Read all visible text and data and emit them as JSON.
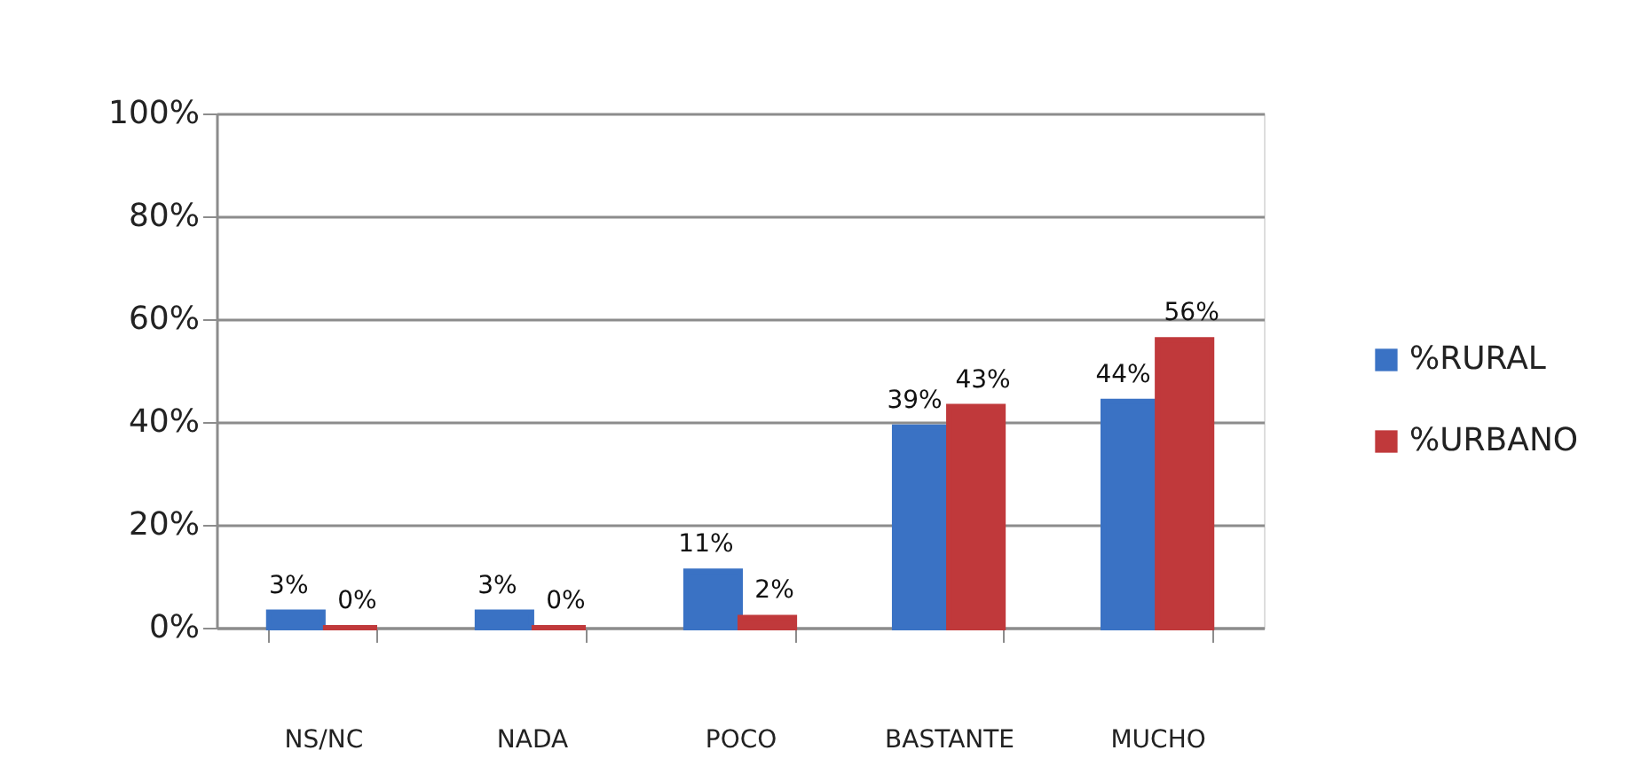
{
  "chart_data": {
    "type": "bar",
    "categories": [
      "NS/NC",
      "NADA",
      "POCO",
      "BASTANTE",
      "MUCHO"
    ],
    "series": [
      {
        "name": "%RURAL",
        "color": "#3a72c4",
        "values": [
          3,
          3,
          11,
          39,
          44
        ],
        "value_labels": [
          "3%",
          "3%",
          "11%",
          "39%",
          "44%"
        ]
      },
      {
        "name": "%URBANO",
        "color": "#c0393b",
        "values": [
          0,
          0,
          2,
          43,
          56
        ],
        "value_labels": [
          "0%",
          "0%",
          "2%",
          "43%",
          "56%"
        ]
      }
    ],
    "ylim": [
      0,
      100
    ],
    "yticks": [
      {
        "value": 0,
        "label": "0%"
      },
      {
        "value": 20,
        "label": "20%"
      },
      {
        "value": 40,
        "label": "40%"
      },
      {
        "value": 60,
        "label": "60%"
      },
      {
        "value": 80,
        "label": "80%"
      },
      {
        "value": 100,
        "label": "100%"
      }
    ],
    "grid": "y",
    "legend": "right"
  }
}
